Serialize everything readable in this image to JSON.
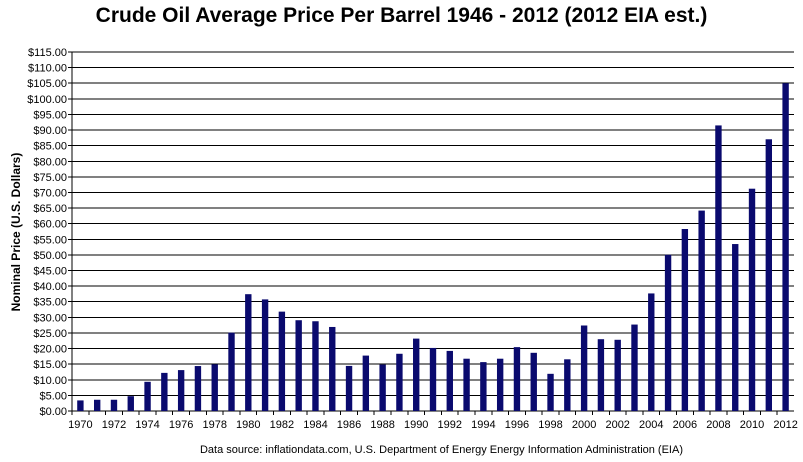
{
  "chart_data": {
    "type": "bar",
    "title": "Crude Oil Average Price Per Barrel 1946 - 2012 (2012 EIA est.)",
    "ylabel": "Nominal Price (U.S. Dollars)",
    "xlabel": "",
    "source": "Data source: inflationdata.com, U.S. Department of Energy Energy Information Administration (EIA)",
    "ylim": [
      0,
      115
    ],
    "ytick_step": 5,
    "grid": true,
    "bar_color": "#0a0a6e",
    "categories": [
      "1970",
      "1971",
      "1972",
      "1973",
      "1974",
      "1975",
      "1976",
      "1977",
      "1978",
      "1979",
      "1980",
      "1981",
      "1982",
      "1983",
      "1984",
      "1985",
      "1986",
      "1987",
      "1988",
      "1989",
      "1990",
      "1991",
      "1992",
      "1993",
      "1994",
      "1995",
      "1996",
      "1997",
      "1998",
      "1999",
      "2000",
      "2001",
      "2002",
      "2003",
      "2004",
      "2005",
      "2006",
      "2007",
      "2008",
      "2009",
      "2010",
      "2011",
      "2012"
    ],
    "x_tick_labels": [
      "1970",
      "1972",
      "1974",
      "1976",
      "1978",
      "1980",
      "1982",
      "1984",
      "1986",
      "1988",
      "1990",
      "1992",
      "1994",
      "1996",
      "1998",
      "2000",
      "2002",
      "2004",
      "2006",
      "2008",
      "2010",
      "2012"
    ],
    "values": [
      3.39,
      3.6,
      3.6,
      4.75,
      9.35,
      12.21,
      13.1,
      14.4,
      14.95,
      25.1,
      37.42,
      35.75,
      31.83,
      29.08,
      28.75,
      26.92,
      14.44,
      17.75,
      14.87,
      18.33,
      23.19,
      20.2,
      19.25,
      16.75,
      15.66,
      16.75,
      20.46,
      18.64,
      11.91,
      16.56,
      27.39,
      23.0,
      22.81,
      27.69,
      37.66,
      50.04,
      58.3,
      64.2,
      91.48,
      53.48,
      71.21,
      87.04,
      105.0
    ]
  }
}
